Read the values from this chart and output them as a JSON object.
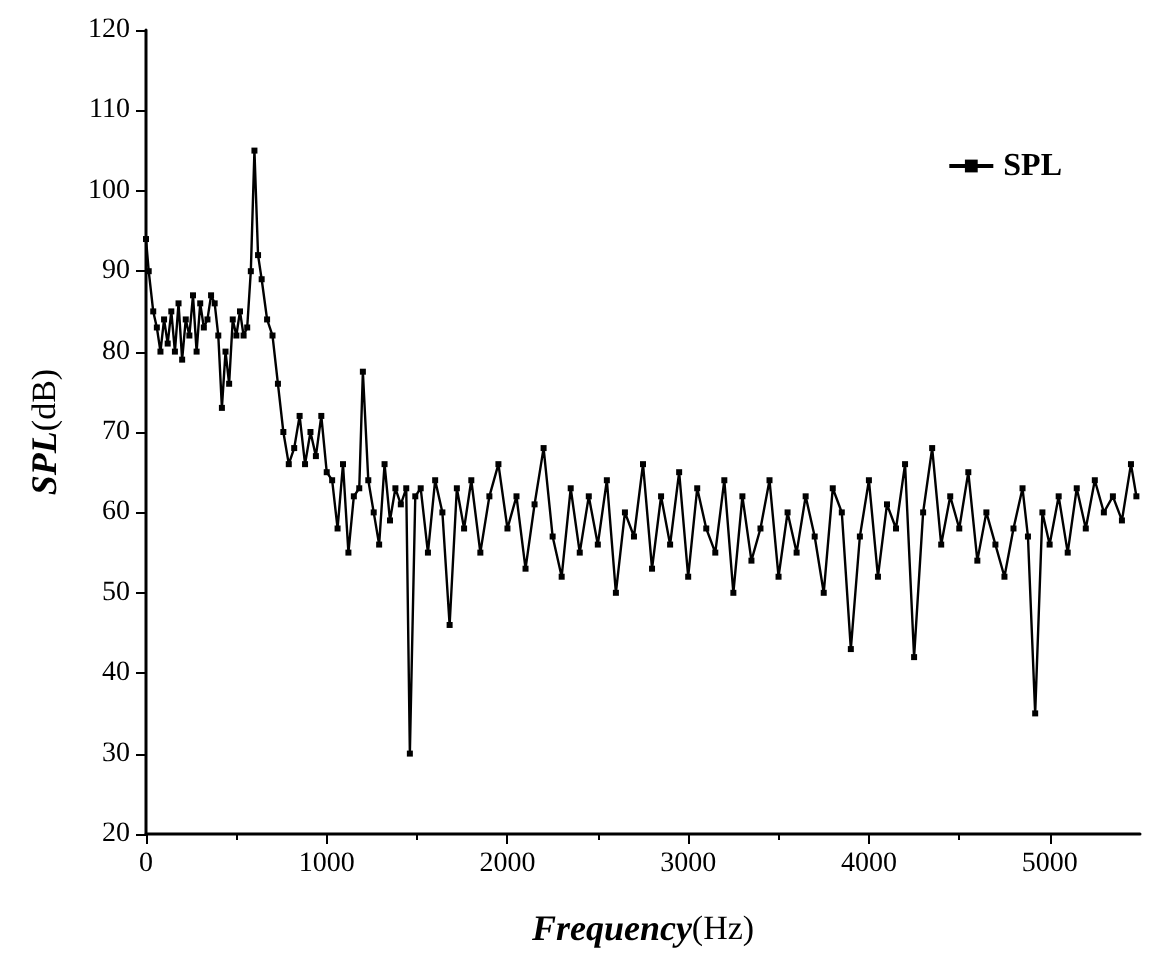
{
  "chart_data": {
    "type": "line",
    "xlabel": "Frequency(Hz)",
    "ylabel": "SPL(dB)",
    "xlim": [
      0,
      5500
    ],
    "xticks": [
      0,
      1000,
      2000,
      3000,
      4000,
      5000
    ],
    "ylim": [
      20,
      120
    ],
    "yticks": [
      20,
      30,
      40,
      50,
      60,
      70,
      80,
      90,
      100,
      110,
      120
    ],
    "legend": "top right",
    "marker": "square",
    "grid": false,
    "x": [
      0,
      15,
      40,
      60,
      80,
      100,
      120,
      140,
      160,
      180,
      200,
      220,
      240,
      260,
      280,
      300,
      320,
      340,
      360,
      380,
      400,
      420,
      440,
      460,
      480,
      500,
      520,
      540,
      560,
      580,
      600,
      620,
      640,
      670,
      700,
      730,
      760,
      790,
      820,
      850,
      880,
      910,
      940,
      970,
      1000,
      1030,
      1060,
      1090,
      1120,
      1150,
      1180,
      1200,
      1230,
      1260,
      1290,
      1320,
      1350,
      1380,
      1410,
      1440,
      1460,
      1490,
      1520,
      1560,
      1600,
      1640,
      1680,
      1720,
      1760,
      1800,
      1850,
      1900,
      1950,
      2000,
      2050,
      2100,
      2150,
      2200,
      2250,
      2300,
      2350,
      2400,
      2450,
      2500,
      2550,
      2600,
      2650,
      2700,
      2750,
      2800,
      2850,
      2900,
      2950,
      3000,
      3050,
      3100,
      3150,
      3200,
      3250,
      3300,
      3350,
      3400,
      3450,
      3500,
      3550,
      3600,
      3650,
      3700,
      3750,
      3800,
      3850,
      3900,
      3950,
      4000,
      4050,
      4100,
      4150,
      4200,
      4250,
      4300,
      4350,
      4400,
      4450,
      4500,
      4550,
      4600,
      4650,
      4700,
      4750,
      4800,
      4850,
      4880,
      4920,
      4960,
      5000,
      5050,
      5100,
      5150,
      5200,
      5250,
      5300,
      5350,
      5400,
      5450,
      5480
    ],
    "series": [
      {
        "name": "SPL",
        "color": "#000000",
        "values": [
          94,
          90,
          85,
          83,
          80,
          84,
          81,
          85,
          80,
          86,
          79,
          84,
          82,
          87,
          80,
          86,
          83,
          84,
          87,
          86,
          82,
          73,
          80,
          76,
          84,
          82,
          85,
          82,
          83,
          90,
          105,
          92,
          89,
          84,
          82,
          76,
          70,
          66,
          68,
          72,
          66,
          70,
          67,
          72,
          65,
          64,
          58,
          66,
          55,
          62,
          63,
          77.5,
          64,
          60,
          56,
          66,
          59,
          63,
          61,
          63,
          30,
          62,
          63,
          55,
          64,
          60,
          46,
          63,
          58,
          64,
          55,
          62,
          66,
          58,
          62,
          53,
          61,
          68,
          57,
          52,
          63,
          55,
          62,
          56,
          64,
          50,
          60,
          57,
          66,
          53,
          62,
          56,
          65,
          52,
          63,
          58,
          55,
          64,
          50,
          62,
          54,
          58,
          64,
          52,
          60,
          55,
          62,
          57,
          50,
          63,
          60,
          43,
          57,
          64,
          52,
          61,
          58,
          66,
          42,
          60,
          68,
          56,
          62,
          58,
          65,
          54,
          60,
          56,
          52,
          58,
          63,
          57,
          35,
          60,
          56,
          62,
          55,
          63,
          58,
          64,
          60,
          62,
          59,
          66,
          62
        ]
      }
    ]
  }
}
